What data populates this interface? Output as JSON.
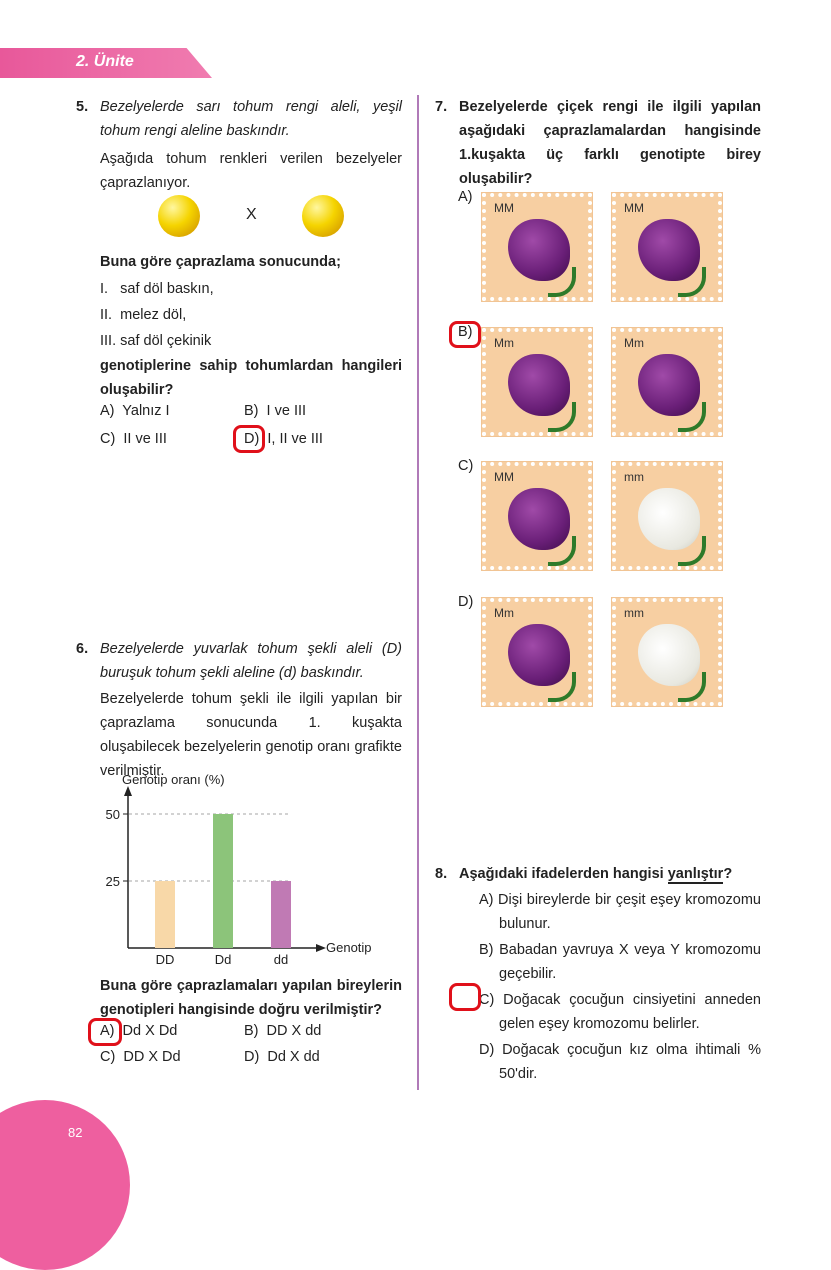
{
  "header": {
    "unit": "2. Ünite"
  },
  "page_number": "82",
  "q5": {
    "number": "5.",
    "stem": "Bezelyelerde sarı tohum rengi aleli, yeşil tohum rengi aleline baskındır.",
    "intro": "Aşağıda tohum renkleri verilen bezelyeler çaprazlanıyor.",
    "cross_symbol": "X",
    "lead": "Buna göre çaprazlama sonucunda;",
    "items": [
      "I.   saf döl baskın,",
      "II.  melez döl,",
      "III. saf döl çekinik"
    ],
    "question": "genotiplerine sahip tohumlardan hangileri oluşabilir?",
    "options": [
      "A)  Yalnız I",
      "B)  I ve III",
      "C)  II ve III",
      "D)  I, II ve III"
    ],
    "marked": "D"
  },
  "q6": {
    "number": "6.",
    "stem": "Bezelyelerde yuvarlak tohum şekli aleli (D) buruşuk tohum şekli aleline (d) baskındır.",
    "intro": "Bezelyelerde tohum şekli ile ilgili yapılan bir çaprazlama sonucunda 1. kuşakta oluşabilecek bezelyelerin genotip oranı grafikte verilmiştir.",
    "question": "Buna göre çaprazlamaları yapılan bireylerin genotipleri hangisinde doğru verilmiştir?",
    "options": [
      "A)  Dd X Dd",
      "B)  DD X dd",
      "C)  DD X Dd",
      "D)  Dd X dd"
    ],
    "marked": "A"
  },
  "chart_data": {
    "type": "bar",
    "categories": [
      "DD",
      "Dd",
      "dd"
    ],
    "values": [
      25,
      50,
      25
    ],
    "ylabel": "Genotip oranı (%)",
    "xlabel": "Genotip",
    "yticks": [
      25,
      50
    ],
    "ylim": [
      0,
      55
    ],
    "colors": [
      "#f8d8a8",
      "#8cc47a",
      "#c07ab4"
    ],
    "grid": "dashed at ticks"
  },
  "q7": {
    "number": "7.",
    "question": "Bezelyelerde çiçek rengi ile ilgili yapılan aşağıdaki çaprazlamalardan hangisinde 1.kuşakta üç farklı genotipte birey oluşabilir?",
    "options": [
      {
        "label": "A)",
        "left": "MM",
        "right": "MM",
        "left_color": "purple",
        "right_color": "purple"
      },
      {
        "label": "B)",
        "left": "Mm",
        "right": "Mm",
        "left_color": "purple",
        "right_color": "purple"
      },
      {
        "label": "C)",
        "left": "MM",
        "right": "mm",
        "left_color": "purple",
        "right_color": "white"
      },
      {
        "label": "D)",
        "left": "Mm",
        "right": "mm",
        "left_color": "purple",
        "right_color": "white"
      }
    ],
    "marked": "B"
  },
  "q8": {
    "number": "8.",
    "question_pre": "Aşağıdaki ifadelerden hangisi ",
    "question_emph": "yanlıştır",
    "question_post": "?",
    "options": [
      "A) Dişi bireylerde bir çeşit eşey kromozomu bulunur.",
      "B) Babadan yavruya X veya Y kromozomu geçebilir.",
      "C) Doğacak çocuğun cinsiyetini anneden gelen eşey kromozomu belirler.",
      "D) Doğacak çocuğun kız olma ihtimali % 50'dir."
    ],
    "marked": "C"
  },
  "colors": {
    "accent": "#ee5f9f",
    "divider": "#b07ab8",
    "mark": "#e0101a"
  }
}
